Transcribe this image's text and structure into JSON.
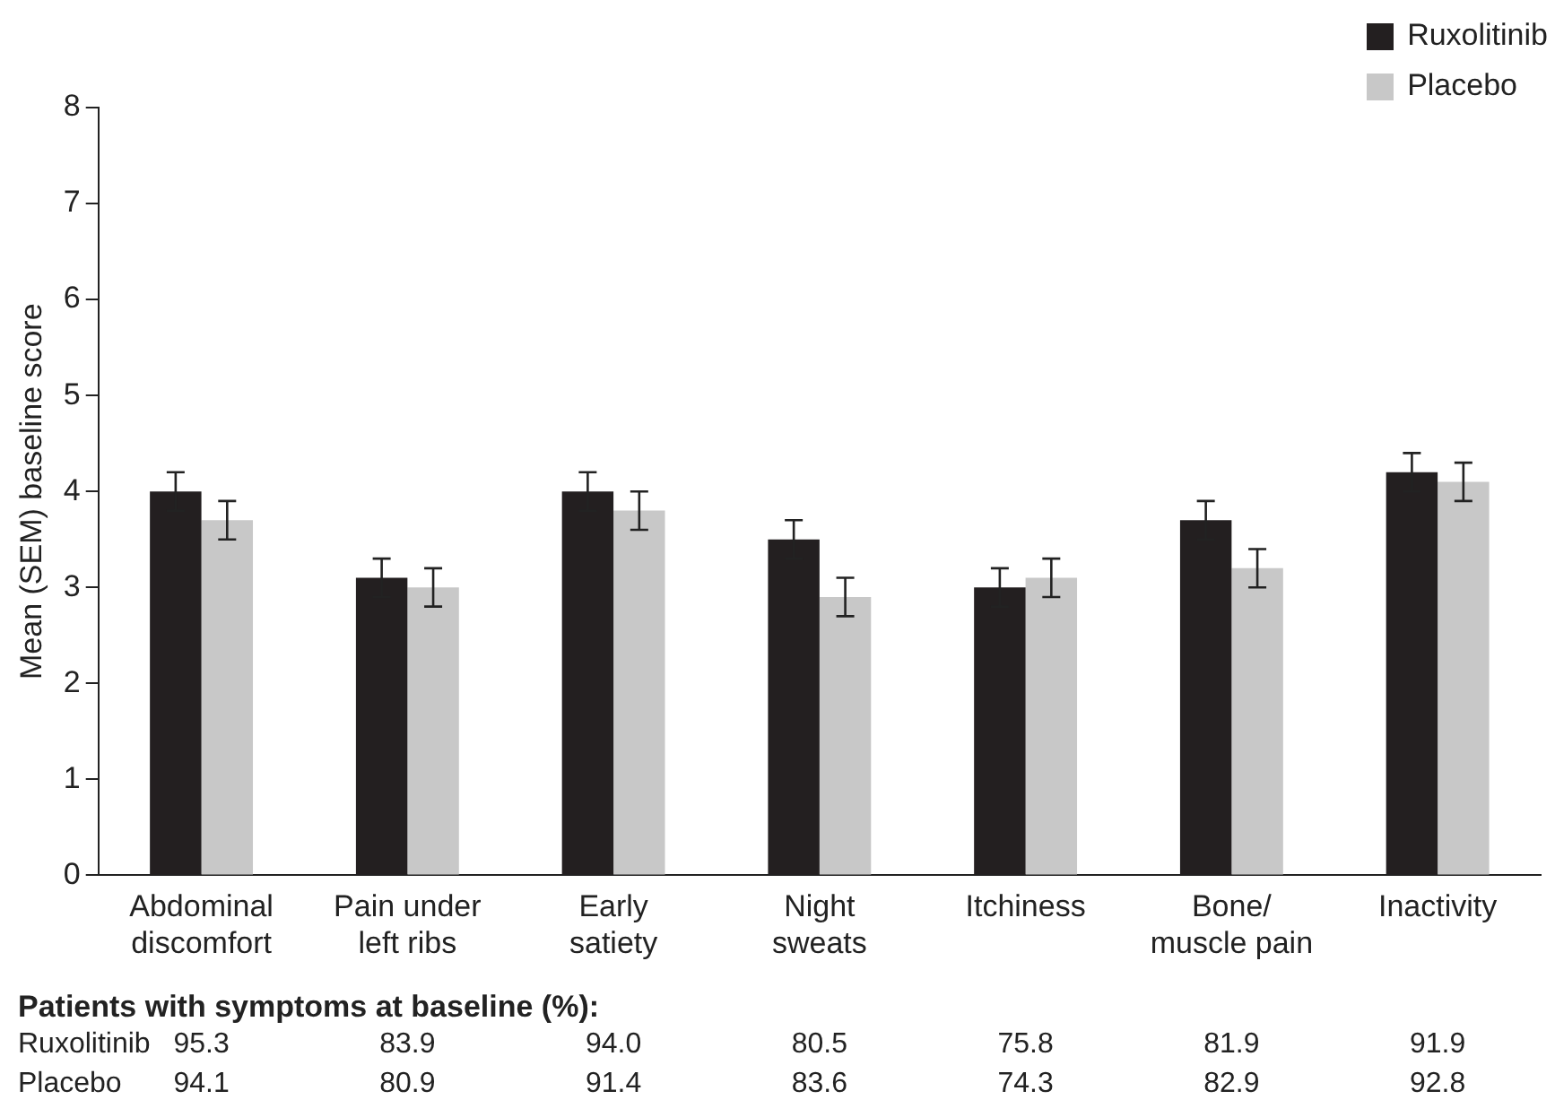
{
  "chart_data": {
    "type": "bar",
    "ylabel": "Mean (SEM) baseline score",
    "categories": [
      "Abdominal\ndiscomfort",
      "Pain under\nleft ribs",
      "Early\nsatiety",
      "Night\nsweats",
      "Itchiness",
      "Bone/\nmuscle pain",
      "Inactivity"
    ],
    "series": [
      {
        "name": "Ruxolitinib",
        "color": "#231f20",
        "values": [
          4.0,
          3.1,
          4.0,
          3.5,
          3.0,
          3.7,
          4.2
        ],
        "errors": [
          0.2,
          0.2,
          0.2,
          0.2,
          0.2,
          0.2,
          0.2
        ]
      },
      {
        "name": "Placebo",
        "color": "#c8c8c8",
        "values": [
          3.7,
          3.0,
          3.8,
          2.9,
          3.1,
          3.2,
          4.1
        ],
        "errors": [
          0.2,
          0.2,
          0.2,
          0.2,
          0.2,
          0.2,
          0.2
        ]
      }
    ],
    "ylim": [
      0,
      8
    ],
    "yticks": [
      0,
      1,
      2,
      3,
      4,
      5,
      6,
      7,
      8
    ],
    "grid": false,
    "legend": "top right",
    "annotations": [
      "Patients with symptoms at baseline (%):",
      "Ruxolitinib 95.3 83.9 94.0 80.5 75.8 81.9 91.9",
      "Placebo 94.1 80.9 91.4 83.6 74.3 82.9 92.8"
    ]
  }
}
